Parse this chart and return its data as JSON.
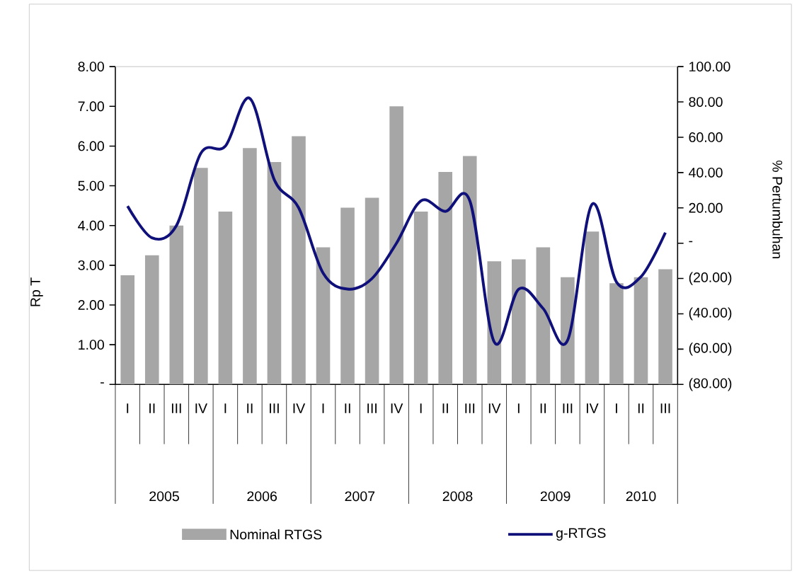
{
  "chart_data": {
    "type": "bar",
    "ylabel": "Rp T",
    "y2label": "% Pertumbuhan",
    "categories": [
      "I",
      "II",
      "III",
      "IV",
      "I",
      "II",
      "III",
      "IV",
      "I",
      "II",
      "III",
      "IV",
      "I",
      "II",
      "III",
      "IV",
      "I",
      "II",
      "III",
      "IV",
      "I",
      "II",
      "III"
    ],
    "annotations": [
      "2005",
      "2006",
      "2007",
      "2008",
      "2009",
      "2010"
    ],
    "series": [
      {
        "name": "Nominal RTGS",
        "color": "#a6a6a6",
        "values": [
          2.75,
          3.25,
          4.0,
          5.45,
          4.35,
          5.95,
          5.6,
          6.25,
          3.45,
          4.45,
          4.7,
          7.0,
          4.35,
          5.35,
          5.75,
          3.1,
          3.15,
          3.45,
          2.7,
          3.85,
          2.55,
          2.7,
          2.9
        ]
      },
      {
        "name": "g-RTGS",
        "type": "line",
        "axis": "y2",
        "color": "#10107a",
        "values": [
          21,
          3,
          10,
          51,
          55,
          82,
          36,
          20,
          -17,
          -26,
          -20,
          0,
          24,
          18,
          24,
          -56,
          -26,
          -37,
          -55,
          22,
          -22,
          -19,
          6
        ]
      }
    ],
    "ylim": [
      0,
      8
    ],
    "yticks": [
      {
        "value": 0,
        "label": "-"
      },
      {
        "value": 1,
        "label": "1.00"
      },
      {
        "value": 2,
        "label": "2.00"
      },
      {
        "value": 3,
        "label": "3.00"
      },
      {
        "value": 4,
        "label": "4.00"
      },
      {
        "value": 5,
        "label": "5.00"
      },
      {
        "value": 6,
        "label": "6.00"
      },
      {
        "value": 7,
        "label": "7.00"
      },
      {
        "value": 8,
        "label": "8.00"
      }
    ],
    "y2lim": [
      -80,
      100
    ],
    "y2ticks": [
      {
        "value": -80,
        "label": "(80.00)"
      },
      {
        "value": -60,
        "label": "(60.00)"
      },
      {
        "value": -40,
        "label": "(40.00)"
      },
      {
        "value": -20,
        "label": "(20.00)"
      },
      {
        "value": 0,
        "label": "-"
      },
      {
        "value": 20,
        "label": "20.00"
      },
      {
        "value": 40,
        "label": "40.00"
      },
      {
        "value": 60,
        "label": "60.00"
      },
      {
        "value": 80,
        "label": "80.00"
      },
      {
        "value": 100,
        "label": "100.00"
      }
    ],
    "legend": "bottom",
    "grid": false,
    "marker": "none",
    "line_style": "solid"
  }
}
